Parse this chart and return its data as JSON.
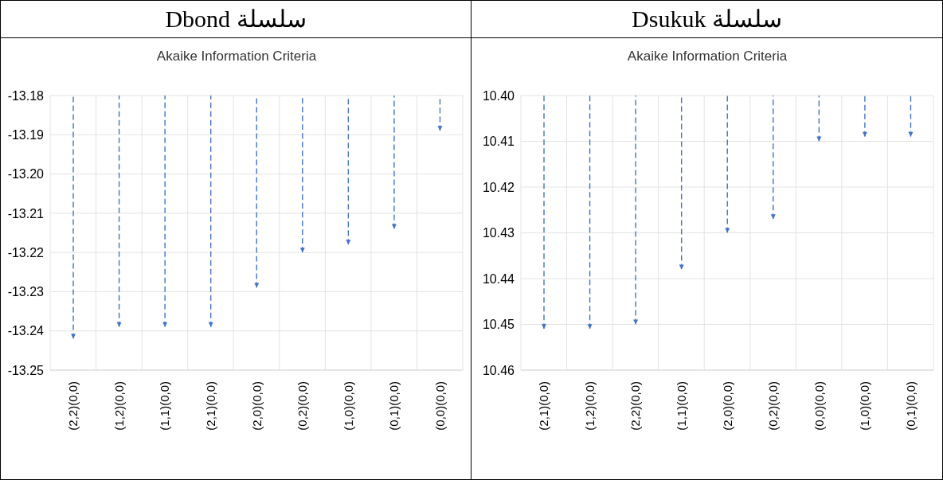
{
  "chart_data": [
    {
      "type": "bar",
      "title": "سلسلة Dbond",
      "subtitle": "Akaike Information Criteria",
      "categories": [
        "(2,2)(0,0)",
        "(1,2)(0,0)",
        "(1,1)(0,0)",
        "(2,1)(0,0)",
        "(2,0)(0,0)",
        "(0,2)(0,0)",
        "(1,0)(0,0)",
        "(0,1)(0,0)",
        "(0,0)(0,0)"
      ],
      "values": [
        -13.242,
        -13.239,
        -13.239,
        -13.239,
        -13.229,
        -13.22,
        -13.218,
        -13.214,
        -13.189
      ],
      "color": "#4472c4",
      "line_style": "dashed",
      "ylim": [
        -13.25,
        -13.18
      ],
      "yticks": [
        {
          "value": -13.25,
          "label": "-13.25"
        },
        {
          "value": -13.24,
          "label": "-13.24"
        },
        {
          "value": -13.23,
          "label": "-13.23"
        },
        {
          "value": -13.22,
          "label": "-13.22"
        },
        {
          "value": -13.21,
          "label": "-13.21"
        },
        {
          "value": -13.2,
          "label": "-13.20"
        },
        {
          "value": -13.19,
          "label": "-13.19"
        },
        {
          "value": -13.18,
          "label": "-13.18"
        }
      ],
      "grid": true
    },
    {
      "type": "bar",
      "title": "سلسلة Dsukuk",
      "subtitle": "Akaike Information Criteria",
      "categories": [
        "(2,1)(0,0)",
        "(1,2)(0,0)",
        "(2,2)(0,0)",
        "(1,1)(0,0)",
        "(2,0)(0,0)",
        "(0,2)(0,0)",
        "(0,0)(0,0)",
        "(1,0)(0,0)",
        "(0,1)(0,0)"
      ],
      "values": [
        10.451,
        10.451,
        10.45,
        10.438,
        10.43,
        10.427,
        10.41,
        10.409,
        10.409
      ],
      "color": "#4472c4",
      "line_style": "dashed",
      "ylim": [
        10.46,
        10.4
      ],
      "yticks": [
        {
          "value": 10.4,
          "label": "10.40"
        },
        {
          "value": 10.41,
          "label": "10.41"
        },
        {
          "value": 10.42,
          "label": "10.42"
        },
        {
          "value": 10.43,
          "label": "10.43"
        },
        {
          "value": 10.44,
          "label": "10.44"
        },
        {
          "value": 10.45,
          "label": "10.45"
        },
        {
          "value": 10.46,
          "label": "10.46"
        }
      ],
      "grid": true
    }
  ]
}
